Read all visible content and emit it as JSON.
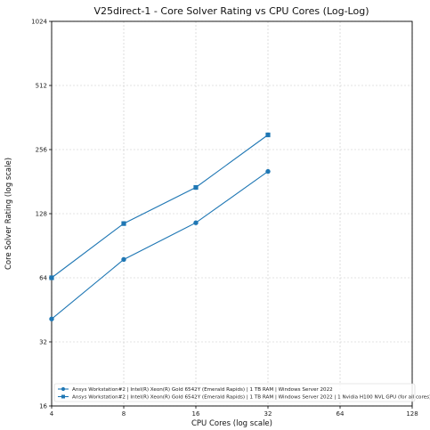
{
  "chart_data": {
    "type": "line",
    "title": "V25direct-1 - Core Solver Rating vs CPU Cores (Log-Log)",
    "xlabel": "CPU Cores (log scale)",
    "ylabel": "Core Solver Rating (log scale)",
    "x_scale": "log2",
    "y_scale": "log2",
    "xlim": [
      4,
      128
    ],
    "ylim": [
      16,
      1024
    ],
    "x_ticks": [
      4,
      8,
      16,
      32,
      64,
      128
    ],
    "x_tick_labels": [
      "4",
      "8",
      "16",
      "32",
      "64",
      "128"
    ],
    "y_ticks": [
      16,
      32,
      64,
      128,
      256,
      512,
      1024
    ],
    "y_tick_labels": [
      "16",
      "32",
      "64",
      "128",
      "256",
      "512",
      "1024"
    ],
    "grid": true,
    "legend_position": "bottom-left",
    "series": [
      {
        "name": "Ansys Workstation#2 | Intel(R) Xeon(R) Gold 6542Y (Emerald Rapids) | 1 TB RAM | Windows Server 2022",
        "marker": "circle",
        "color": "#1f77b4",
        "x": [
          4,
          8,
          16,
          32
        ],
        "y": [
          41,
          78,
          116,
          202
        ]
      },
      {
        "name": "Ansys Workstation#2 | Intel(R) Xeon(R) Gold 6542Y (Emerald Rapids) | 1 TB RAM | Windows Server 2022 | 1 Nvidia H100 NVL GPU (for all cores)",
        "marker": "square",
        "color": "#1f77b4",
        "x": [
          4,
          8,
          16,
          32
        ],
        "y": [
          64,
          115,
          170,
          300
        ]
      }
    ]
  }
}
